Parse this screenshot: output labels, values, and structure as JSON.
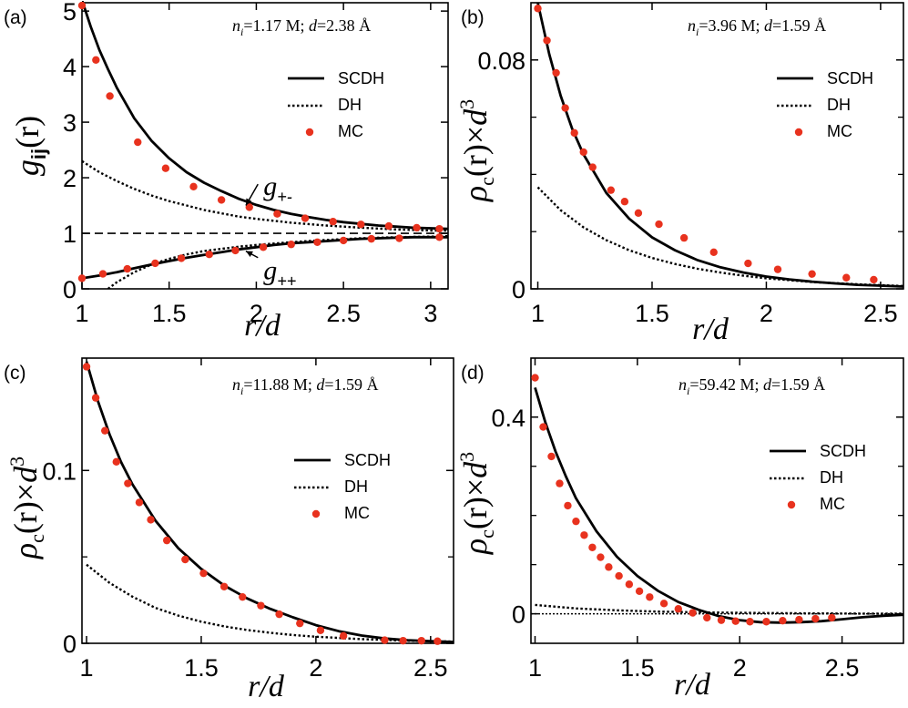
{
  "chart_data": [
    {
      "id": "a",
      "type": "line",
      "panel_label": "(a)",
      "annotation": {
        "n_sym": "n",
        "n_sub": "i",
        "n_val": "=1.17 M; ",
        "d_sym": "d",
        "d_val": "=2.38 Å"
      },
      "ylabel": {
        "main": "g",
        "sub": "ij",
        "arg": "(r)"
      },
      "xlabel": "r/d",
      "xlim": [
        1,
        3.1
      ],
      "ylim": [
        0,
        5.15
      ],
      "xticks": [
        1,
        1.5,
        2,
        2.5,
        3
      ],
      "xtick_labels": [
        "1",
        "1.5",
        "2",
        "2.5",
        "3"
      ],
      "yticks": [
        0,
        1,
        2,
        3,
        4,
        5
      ],
      "ytick_labels": [
        "0",
        "1",
        "2",
        "3",
        "4",
        "5"
      ],
      "legend": [
        "SCDH",
        "DH",
        "MC"
      ],
      "reference_line": 1,
      "curve_labels": [
        {
          "main": "g",
          "sub": "+-",
          "x": 2.02,
          "y": 1.72,
          "arrow_to": [
            1.94,
            1.5
          ]
        },
        {
          "main": "g",
          "sub": "++",
          "x": 2.02,
          "y": 0.07,
          "arrow_to": [
            1.94,
            0.68
          ]
        }
      ],
      "series": [
        {
          "name": "SCDH (g+-)",
          "style": "solid",
          "x": [
            1,
            1.05,
            1.1,
            1.15,
            1.2,
            1.3,
            1.4,
            1.5,
            1.6,
            1.7,
            1.8,
            1.9,
            2.0,
            2.1,
            2.2,
            2.3,
            2.4,
            2.5,
            2.6,
            2.7,
            2.8,
            2.9,
            3.0,
            3.1
          ],
          "y": [
            5.2,
            4.72,
            4.3,
            3.95,
            3.62,
            3.07,
            2.66,
            2.35,
            2.1,
            1.91,
            1.76,
            1.62,
            1.51,
            1.42,
            1.35,
            1.29,
            1.24,
            1.2,
            1.17,
            1.14,
            1.12,
            1.1,
            1.09,
            1.08
          ]
        },
        {
          "name": "SCDH (g++)",
          "style": "solid",
          "x": [
            1,
            1.1,
            1.2,
            1.3,
            1.4,
            1.5,
            1.6,
            1.7,
            1.8,
            1.9,
            2.0,
            2.1,
            2.2,
            2.3,
            2.4,
            2.5,
            2.6,
            2.7,
            2.8,
            2.9,
            3.0,
            3.1
          ],
          "y": [
            0.19,
            0.24,
            0.3,
            0.37,
            0.44,
            0.5,
            0.56,
            0.61,
            0.66,
            0.71,
            0.75,
            0.79,
            0.82,
            0.84,
            0.86,
            0.88,
            0.9,
            0.91,
            0.92,
            0.93,
            0.93,
            0.93
          ]
        },
        {
          "name": "DH (g+-)",
          "style": "dotted",
          "x": [
            1,
            1.1,
            1.2,
            1.3,
            1.4,
            1.5,
            1.6,
            1.7,
            1.8,
            1.9,
            2.0,
            2.2,
            2.4,
            2.6,
            2.8,
            3.0,
            3.1
          ],
          "y": [
            2.3,
            2.1,
            1.94,
            1.8,
            1.68,
            1.58,
            1.5,
            1.42,
            1.36,
            1.3,
            1.26,
            1.19,
            1.14,
            1.1,
            1.07,
            1.05,
            1.05
          ]
        },
        {
          "name": "DH (g++)",
          "style": "dotted",
          "x": [
            1.15,
            1.2,
            1.3,
            1.4,
            1.5,
            1.6,
            1.7,
            1.8,
            1.9,
            2.0,
            2.2,
            2.4,
            2.6,
            2.8,
            3.0,
            3.1
          ],
          "y": [
            0.0,
            0.12,
            0.3,
            0.44,
            0.54,
            0.62,
            0.68,
            0.72,
            0.76,
            0.79,
            0.84,
            0.88,
            0.91,
            0.93,
            0.94,
            0.95
          ]
        },
        {
          "name": "MC (g+-)",
          "style": "markers",
          "x": [
            1.0,
            1.08,
            1.16,
            1.32,
            1.48,
            1.64,
            1.8,
            1.96,
            2.12,
            2.28,
            2.44,
            2.6,
            2.76,
            2.92,
            3.05
          ],
          "y": [
            5.1,
            4.12,
            3.47,
            2.64,
            2.17,
            1.84,
            1.6,
            1.47,
            1.35,
            1.27,
            1.21,
            1.16,
            1.13,
            1.1,
            1.08
          ]
        },
        {
          "name": "MC (g++)",
          "style": "markers",
          "x": [
            1.0,
            1.12,
            1.26,
            1.42,
            1.57,
            1.73,
            1.88,
            2.04,
            2.2,
            2.35,
            2.5,
            2.66,
            2.82,
            3.05
          ],
          "y": [
            0.19,
            0.27,
            0.36,
            0.46,
            0.55,
            0.62,
            0.69,
            0.75,
            0.8,
            0.84,
            0.87,
            0.9,
            0.91,
            0.93
          ]
        }
      ]
    },
    {
      "id": "b",
      "type": "line",
      "panel_label": "(b)",
      "annotation": {
        "n_sym": "n",
        "n_sub": "i",
        "n_val": "=3.96 M; ",
        "d_sym": "d",
        "d_val": "=1.59 Å"
      },
      "ylabel": {
        "rho": "ρ",
        "sub": "c",
        "arg": "(r)×",
        "d": "d",
        "exp": "3"
      },
      "xlabel": "r/d",
      "xlim": [
        0.97,
        2.6
      ],
      "ylim": [
        0,
        0.1
      ],
      "xticks": [
        1,
        1.5,
        2,
        2.5
      ],
      "xtick_labels": [
        "1",
        "1.5",
        "2",
        "2.5"
      ],
      "yticks": [
        0,
        0.08
      ],
      "ytick_labels": [
        "0",
        "0.08"
      ],
      "minor_yticks": [
        0.02,
        0.04,
        0.06
      ],
      "legend": [
        "SCDH",
        "DH",
        "MC"
      ],
      "series": [
        {
          "name": "SCDH",
          "style": "solid",
          "x": [
            1.0,
            1.05,
            1.1,
            1.15,
            1.2,
            1.3,
            1.4,
            1.5,
            1.6,
            1.7,
            1.8,
            1.9,
            2.0,
            2.1,
            2.2,
            2.3,
            2.4,
            2.5,
            2.6
          ],
          "y": [
            0.1,
            0.082,
            0.0675,
            0.056,
            0.047,
            0.0335,
            0.0245,
            0.018,
            0.0135,
            0.01,
            0.0075,
            0.0057,
            0.0043,
            0.0033,
            0.0025,
            0.0019,
            0.0014,
            0.0011,
            0.0008
          ]
        },
        {
          "name": "DH",
          "style": "dotted",
          "x": [
            1.0,
            1.1,
            1.2,
            1.3,
            1.4,
            1.5,
            1.6,
            1.7,
            1.8,
            1.9,
            2.0,
            2.2,
            2.4,
            2.6
          ],
          "y": [
            0.0355,
            0.0275,
            0.0215,
            0.017,
            0.0135,
            0.0108,
            0.0087,
            0.007,
            0.0057,
            0.0046,
            0.0037,
            0.0024,
            0.0016,
            0.001
          ]
        },
        {
          "name": "MC",
          "style": "markers",
          "x": [
            1.0,
            1.04,
            1.08,
            1.12,
            1.16,
            1.2,
            1.24,
            1.32,
            1.38,
            1.44,
            1.53,
            1.64,
            1.77,
            1.92,
            2.05,
            2.2,
            2.35,
            2.47
          ],
          "y": [
            0.098,
            0.0868,
            0.0755,
            0.0632,
            0.0545,
            0.0478,
            0.0425,
            0.0345,
            0.0305,
            0.0265,
            0.0226,
            0.0178,
            0.0128,
            0.0089,
            0.0068,
            0.0052,
            0.0039,
            0.0032
          ]
        }
      ]
    },
    {
      "id": "c",
      "type": "line",
      "panel_label": "(c)",
      "annotation": {
        "n_sym": "n",
        "n_sub": "i",
        "n_val": "=11.88 M; ",
        "d_sym": "d",
        "d_val": "=1.59 Å"
      },
      "ylabel": {
        "rho": "ρ",
        "sub": "c",
        "arg": "(r)×",
        "d": "d",
        "exp": "3"
      },
      "xlabel": "r/d",
      "xlim": [
        0.98,
        2.6
      ],
      "ylim": [
        0,
        0.165
      ],
      "xticks": [
        1,
        1.5,
        2,
        2.5
      ],
      "xtick_labels": [
        "1",
        "1.5",
        "2",
        "2.5"
      ],
      "yticks": [
        0,
        0.1
      ],
      "ytick_labels": [
        "0",
        "0.1"
      ],
      "minor_yticks": [
        0.05
      ],
      "legend": [
        "SCDH",
        "DH",
        "MC"
      ],
      "series": [
        {
          "name": "SCDH",
          "style": "solid",
          "x": [
            1.0,
            1.05,
            1.1,
            1.15,
            1.2,
            1.3,
            1.4,
            1.5,
            1.6,
            1.7,
            1.8,
            1.9,
            2.0,
            2.1,
            2.2,
            2.3,
            2.4,
            2.5,
            2.6
          ],
          "y": [
            0.163,
            0.14,
            0.121,
            0.105,
            0.092,
            0.071,
            0.055,
            0.043,
            0.0335,
            0.026,
            0.02,
            0.015,
            0.0105,
            0.007,
            0.0045,
            0.0028,
            0.0018,
            0.0012,
            0.0008
          ]
        },
        {
          "name": "DH",
          "style": "dotted",
          "x": [
            1.0,
            1.1,
            1.2,
            1.3,
            1.4,
            1.5,
            1.6,
            1.7,
            1.8,
            1.9,
            2.0,
            2.2,
            2.4,
            2.6
          ],
          "y": [
            0.0455,
            0.035,
            0.027,
            0.0205,
            0.016,
            0.0125,
            0.0098,
            0.0077,
            0.0061,
            0.0048,
            0.0038,
            0.0024,
            0.0015,
            0.001
          ]
        },
        {
          "name": "MC",
          "style": "markers",
          "x": [
            1.0,
            1.04,
            1.08,
            1.13,
            1.18,
            1.23,
            1.28,
            1.35,
            1.43,
            1.51,
            1.6,
            1.68,
            1.76,
            1.84,
            1.93,
            2.02,
            2.12,
            2.3,
            2.38,
            2.46,
            2.53
          ],
          "y": [
            0.16,
            0.142,
            0.123,
            0.105,
            0.0925,
            0.0815,
            0.0715,
            0.0595,
            0.0485,
            0.0405,
            0.0328,
            0.0268,
            0.0218,
            0.0168,
            0.0115,
            0.0075,
            0.0043,
            0.0018,
            0.0015,
            0.0015,
            0.0012
          ]
        }
      ]
    },
    {
      "id": "d",
      "type": "line",
      "panel_label": "(d)",
      "annotation": {
        "n_sym": "n",
        "n_sub": "i",
        "n_val": "=59.42 M; ",
        "d_sym": "d",
        "d_val": "=1.59 Å"
      },
      "ylabel": {
        "rho": "ρ",
        "sub": "c",
        "arg": "(r)×",
        "d": "d",
        "exp": "3"
      },
      "xlabel": "r/d",
      "xlim": [
        0.98,
        2.8
      ],
      "ylim": [
        -0.06,
        0.52
      ],
      "xticks": [
        1,
        1.5,
        2,
        2.5
      ],
      "xtick_labels": [
        "1",
        "1.5",
        "2",
        "2.5"
      ],
      "yticks": [
        0,
        0.4
      ],
      "ytick_labels": [
        "0",
        "0.4"
      ],
      "minor_yticks": [
        0.1,
        0.2,
        0.3
      ],
      "legend": [
        "SCDH",
        "DH",
        "MC"
      ],
      "reference_line": 0,
      "series": [
        {
          "name": "SCDH",
          "style": "solid",
          "x": [
            1.0,
            1.05,
            1.1,
            1.15,
            1.2,
            1.3,
            1.4,
            1.5,
            1.6,
            1.7,
            1.8,
            1.9,
            2.0,
            2.1,
            2.2,
            2.3,
            2.4,
            2.5,
            2.6,
            2.7,
            2.8
          ],
          "y": [
            0.46,
            0.39,
            0.33,
            0.28,
            0.235,
            0.168,
            0.116,
            0.077,
            0.047,
            0.024,
            0.008,
            -0.005,
            -0.013,
            -0.017,
            -0.018,
            -0.017,
            -0.015,
            -0.011,
            -0.007,
            -0.004,
            -0.002
          ]
        },
        {
          "name": "DH",
          "style": "dotted",
          "x": [
            1.0,
            1.2,
            1.4,
            1.6,
            1.8,
            2.0,
            2.2,
            2.4,
            2.6,
            2.8
          ],
          "y": [
            0.018,
            0.011,
            0.007,
            0.0045,
            0.003,
            0.002,
            0.0013,
            0.0008,
            0.0005,
            0.0003
          ]
        },
        {
          "name": "MC",
          "style": "markers",
          "x": [
            1.0,
            1.04,
            1.08,
            1.12,
            1.16,
            1.2,
            1.24,
            1.28,
            1.32,
            1.36,
            1.41,
            1.46,
            1.51,
            1.56,
            1.63,
            1.7,
            1.77,
            1.84,
            1.91,
            1.98,
            2.05,
            2.13,
            2.21,
            2.29,
            2.37,
            2.45
          ],
          "y": [
            0.48,
            0.38,
            0.32,
            0.265,
            0.22,
            0.188,
            0.16,
            0.135,
            0.115,
            0.095,
            0.077,
            0.06,
            0.046,
            0.034,
            0.021,
            0.01,
            0.002,
            -0.008,
            -0.013,
            -0.015,
            -0.016,
            -0.016,
            -0.014,
            -0.012,
            -0.01,
            -0.008
          ]
        }
      ]
    }
  ],
  "colors": {
    "line": "#000000",
    "marker": "#e8321e",
    "reference": "#000000"
  }
}
